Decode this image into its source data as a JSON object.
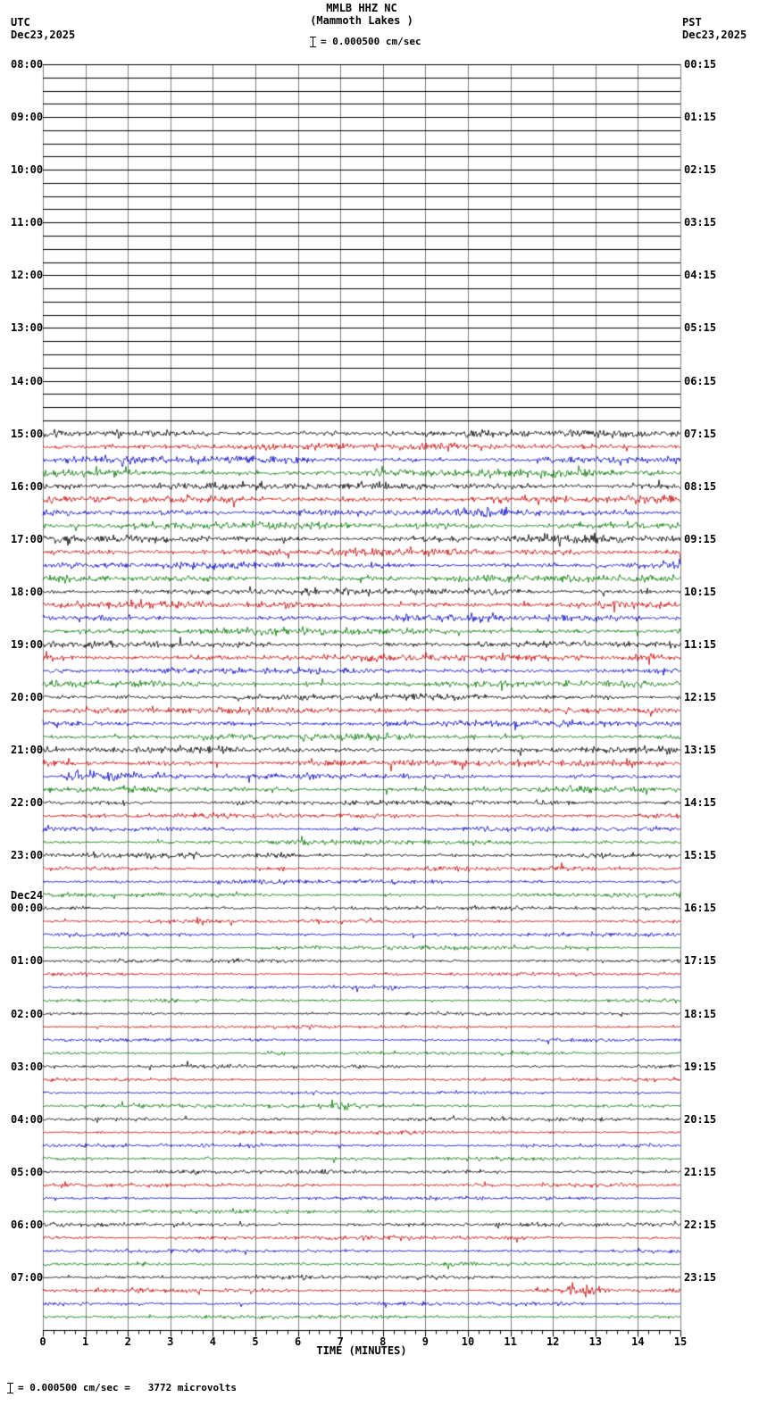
{
  "header": {
    "title": "MMLB HHZ NC",
    "subtitle": "(Mammoth Lakes )",
    "utc_label": "UTC",
    "utc_date": "Dec23,2025",
    "pst_label": "PST",
    "pst_date": "Dec23,2025",
    "scale_text": "= 0.000500 cm/sec"
  },
  "footer": {
    "scale_text": "= 0.000500 cm/sec =   3772 microvolts"
  },
  "axis": {
    "label": "TIME (MINUTES)",
    "ticks": [
      "0",
      "1",
      "2",
      "3",
      "4",
      "5",
      "6",
      "7",
      "8",
      "9",
      "10",
      "11",
      "12",
      "13",
      "14",
      "15"
    ]
  },
  "chart_data": {
    "type": "line",
    "x_range_minutes": [
      0,
      15
    ],
    "rows_per_hour": 4,
    "row_duration_minutes": 15,
    "trace_colors": [
      "#000000",
      "#cc0000",
      "#0000cc",
      "#007700"
    ],
    "utc_labels": [
      {
        "text": "08:00"
      },
      {
        "text": "09:00"
      },
      {
        "text": "10:00"
      },
      {
        "text": "11:00"
      },
      {
        "text": "12:00"
      },
      {
        "text": "13:00"
      },
      {
        "text": "14:00"
      },
      {
        "text": "15:00"
      },
      {
        "text": "16:00"
      },
      {
        "text": "17:00"
      },
      {
        "text": "18:00"
      },
      {
        "text": "19:00"
      },
      {
        "text": "20:00"
      },
      {
        "text": "21:00"
      },
      {
        "text": "22:00"
      },
      {
        "text": "23:00"
      },
      {
        "text": "00:00",
        "extra": "Dec24"
      },
      {
        "text": "01:00"
      },
      {
        "text": "02:00"
      },
      {
        "text": "03:00"
      },
      {
        "text": "04:00"
      },
      {
        "text": "05:00"
      },
      {
        "text": "06:00"
      },
      {
        "text": "07:00"
      }
    ],
    "pst_labels": [
      "00:15",
      "01:15",
      "02:15",
      "03:15",
      "04:15",
      "05:15",
      "06:15",
      "07:15",
      "08:15",
      "09:15",
      "10:15",
      "11:15",
      "12:15",
      "13:15",
      "14:15",
      "15:15",
      "16:15",
      "17:15",
      "18:15",
      "19:15",
      "20:15",
      "21:15",
      "22:15",
      "23:15"
    ],
    "amps": [
      0,
      0,
      0,
      0,
      0,
      0,
      0,
      0,
      0,
      0,
      0,
      0,
      0,
      0,
      0,
      0,
      0,
      0,
      0,
      0,
      0,
      0,
      0,
      0,
      0,
      0,
      0,
      0,
      1.5,
      1.6,
      1.5,
      1.7,
      1.6,
      1.5,
      1.5,
      1.6,
      1.5,
      1.6,
      1.4,
      1.5,
      1.4,
      1.5,
      1.4,
      1.4,
      1.4,
      1.5,
      1.3,
      1.4,
      1.3,
      1.4,
      1.3,
      1.3,
      1.3,
      1.4,
      1.2,
      1.2,
      1.1,
      1.1,
      1.0,
      1.0,
      1.1,
      1.0,
      0.9,
      0.9,
      0.8,
      0.8,
      0.8,
      0.8,
      0.8,
      0.7,
      0.7,
      0.7,
      0.7,
      0.7,
      0.7,
      0.7,
      0.8,
      0.7,
      0.7,
      0.8,
      0.8,
      0.8,
      0.8,
      0.8,
      0.9,
      0.8,
      0.8,
      0.8,
      0.9,
      0.9,
      0.8,
      0.8,
      0.9,
      0.9,
      0.8,
      0.8
    ],
    "events": [
      {
        "row": 54,
        "s": 0.3,
        "e": 2.5,
        "m": 4.5
      },
      {
        "row": 53,
        "s": 13.4,
        "e": 15.0,
        "m": 1.6
      },
      {
        "row": 45,
        "s": 13.6,
        "e": 15.0,
        "m": 1.7
      },
      {
        "row": 65,
        "s": 3.5,
        "e": 4.0,
        "m": 2.6
      },
      {
        "row": 70,
        "s": 8.0,
        "e": 8.6,
        "m": 2.2
      },
      {
        "row": 75,
        "s": 5.2,
        "e": 6.2,
        "m": 2.0
      },
      {
        "row": 79,
        "s": 6.4,
        "e": 8.8,
        "m": 3.6
      },
      {
        "row": 93,
        "s": 12.2,
        "e": 13.4,
        "m": 3.2
      }
    ]
  }
}
